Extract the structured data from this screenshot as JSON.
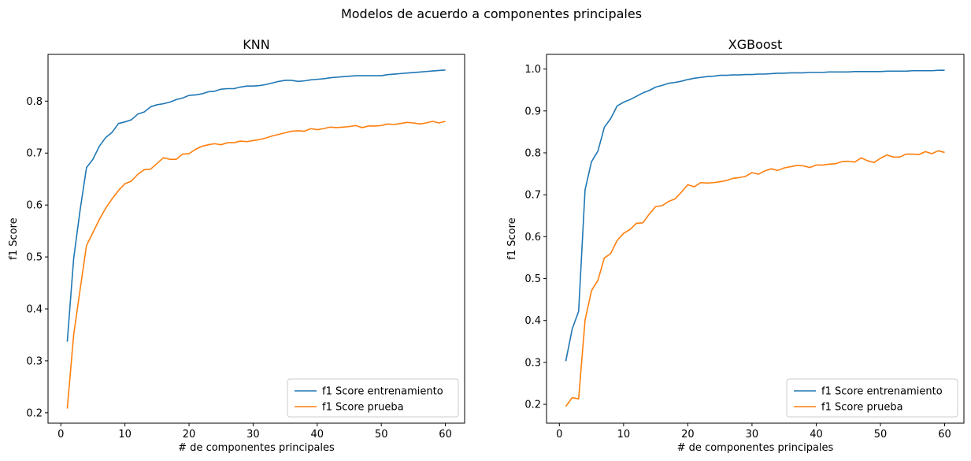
{
  "figure_title": "Modelos de acuerdo a componentes principales",
  "colors": {
    "train": "#1f77b4",
    "test": "#ff7f0e",
    "axis": "#000000",
    "legend_border": "#cccccc"
  },
  "chart_data": [
    {
      "type": "line",
      "title": "KNN",
      "xlabel": "# de componentes principales",
      "ylabel": "f1 Score",
      "xlim": [
        -2.0,
        63.0
      ],
      "ylim": [
        0.18,
        0.89
      ],
      "xticks": [
        0,
        10,
        20,
        30,
        40,
        50,
        60
      ],
      "xtick_labels": [
        "0",
        "10",
        "20",
        "30",
        "40",
        "50",
        "60"
      ],
      "yticks": [
        0.2,
        0.3,
        0.4,
        0.5,
        0.6,
        0.7,
        0.8
      ],
      "ytick_labels": [
        "0.2",
        "0.3",
        "0.4",
        "0.5",
        "0.6",
        "0.7",
        "0.8"
      ],
      "grid": false,
      "legend_position": "lower-right",
      "x": [
        1,
        2,
        3,
        4,
        5,
        6,
        7,
        8,
        9,
        10,
        11,
        12,
        13,
        14,
        15,
        16,
        17,
        18,
        19,
        20,
        21,
        22,
        23,
        24,
        25,
        26,
        27,
        28,
        29,
        30,
        31,
        32,
        33,
        34,
        35,
        36,
        37,
        38,
        39,
        40,
        41,
        42,
        43,
        44,
        45,
        46,
        47,
        48,
        49,
        50,
        51,
        52,
        53,
        54,
        55,
        56,
        57,
        58,
        59,
        60
      ],
      "series": [
        {
          "name": "f1 Score entrenamiento",
          "color": "#1f77b4",
          "values": [
            0.337,
            0.497,
            0.59,
            0.672,
            0.688,
            0.713,
            0.73,
            0.74,
            0.757,
            0.76,
            0.764,
            0.775,
            0.779,
            0.789,
            0.793,
            0.795,
            0.798,
            0.803,
            0.806,
            0.811,
            0.812,
            0.814,
            0.818,
            0.819,
            0.823,
            0.824,
            0.824,
            0.827,
            0.829,
            0.829,
            0.83,
            0.832,
            0.835,
            0.838,
            0.84,
            0.84,
            0.838,
            0.839,
            0.841,
            0.842,
            0.843,
            0.845,
            0.846,
            0.847,
            0.848,
            0.849,
            0.849,
            0.849,
            0.849,
            0.849,
            0.851,
            0.852,
            0.853,
            0.854,
            0.855,
            0.856,
            0.857,
            0.858,
            0.859,
            0.86
          ]
        },
        {
          "name": "f1 Score prueba",
          "color": "#ff7f0e",
          "values": [
            0.208,
            0.35,
            0.437,
            0.522,
            0.547,
            0.572,
            0.594,
            0.612,
            0.628,
            0.641,
            0.646,
            0.659,
            0.668,
            0.669,
            0.68,
            0.691,
            0.688,
            0.688,
            0.698,
            0.699,
            0.707,
            0.713,
            0.716,
            0.718,
            0.716,
            0.72,
            0.72,
            0.723,
            0.722,
            0.724,
            0.726,
            0.729,
            0.733,
            0.736,
            0.739,
            0.742,
            0.743,
            0.742,
            0.747,
            0.745,
            0.747,
            0.75,
            0.749,
            0.75,
            0.751,
            0.753,
            0.749,
            0.752,
            0.752,
            0.753,
            0.756,
            0.755,
            0.757,
            0.759,
            0.758,
            0.756,
            0.758,
            0.761,
            0.758,
            0.761
          ]
        }
      ]
    },
    {
      "type": "line",
      "title": "XGBoost",
      "xlabel": "# de componentes principales",
      "ylabel": "f1 Score",
      "xlim": [
        -2.0,
        63.0
      ],
      "ylim": [
        0.155,
        1.035
      ],
      "xticks": [
        0,
        10,
        20,
        30,
        40,
        50,
        60
      ],
      "xtick_labels": [
        "0",
        "10",
        "20",
        "30",
        "40",
        "50",
        "60"
      ],
      "yticks": [
        0.2,
        0.3,
        0.4,
        0.5,
        0.6,
        0.7,
        0.8,
        0.9,
        1.0
      ],
      "ytick_labels": [
        "0.2",
        "0.3",
        "0.4",
        "0.5",
        "0.6",
        "0.7",
        "0.8",
        "0.9",
        "1.0"
      ],
      "grid": false,
      "legend_position": "lower-right",
      "x": [
        1,
        2,
        3,
        4,
        5,
        6,
        7,
        8,
        9,
        10,
        11,
        12,
        13,
        14,
        15,
        16,
        17,
        18,
        19,
        20,
        21,
        22,
        23,
        24,
        25,
        26,
        27,
        28,
        29,
        30,
        31,
        32,
        33,
        34,
        35,
        36,
        37,
        38,
        39,
        40,
        41,
        42,
        43,
        44,
        45,
        46,
        47,
        48,
        49,
        50,
        51,
        52,
        53,
        54,
        55,
        56,
        57,
        58,
        59,
        60
      ],
      "series": [
        {
          "name": "f1 Score entrenamiento",
          "color": "#1f77b4",
          "values": [
            0.303,
            0.38,
            0.422,
            0.712,
            0.779,
            0.804,
            0.861,
            0.882,
            0.912,
            0.921,
            0.927,
            0.935,
            0.943,
            0.949,
            0.957,
            0.961,
            0.966,
            0.968,
            0.971,
            0.975,
            0.978,
            0.98,
            0.982,
            0.983,
            0.985,
            0.985,
            0.986,
            0.986,
            0.987,
            0.987,
            0.988,
            0.988,
            0.989,
            0.99,
            0.99,
            0.991,
            0.991,
            0.991,
            0.992,
            0.992,
            0.992,
            0.993,
            0.993,
            0.993,
            0.993,
            0.994,
            0.994,
            0.994,
            0.994,
            0.994,
            0.995,
            0.995,
            0.995,
            0.995,
            0.996,
            0.996,
            0.996,
            0.996,
            0.997,
            0.997
          ]
        },
        {
          "name": "f1 Score prueba",
          "color": "#ff7f0e",
          "values": [
            0.195,
            0.216,
            0.213,
            0.401,
            0.471,
            0.496,
            0.549,
            0.56,
            0.591,
            0.608,
            0.617,
            0.632,
            0.633,
            0.654,
            0.672,
            0.674,
            0.684,
            0.69,
            0.706,
            0.724,
            0.719,
            0.729,
            0.728,
            0.729,
            0.731,
            0.734,
            0.739,
            0.741,
            0.744,
            0.753,
            0.749,
            0.757,
            0.762,
            0.758,
            0.764,
            0.767,
            0.77,
            0.769,
            0.765,
            0.771,
            0.771,
            0.773,
            0.774,
            0.779,
            0.78,
            0.778,
            0.788,
            0.781,
            0.777,
            0.787,
            0.795,
            0.79,
            0.79,
            0.797,
            0.797,
            0.796,
            0.803,
            0.798,
            0.805,
            0.801
          ]
        }
      ]
    }
  ]
}
